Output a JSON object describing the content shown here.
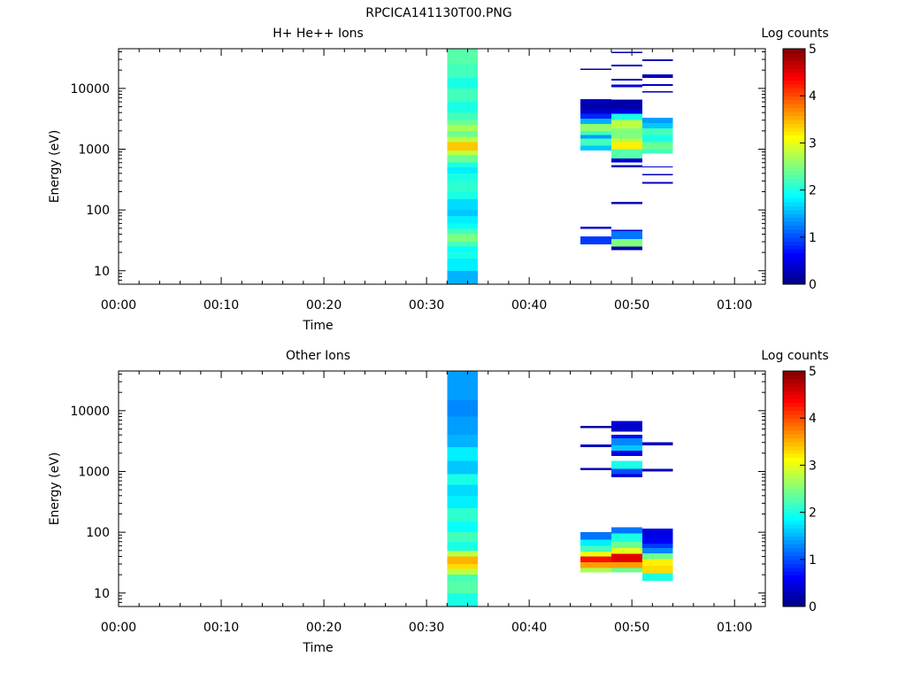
{
  "file_title": "RPCICA141130T00.PNG",
  "colors": {
    "colormap": [
      "#00007f",
      "#0000ff",
      "#007fff",
      "#00ffff",
      "#7fff7f",
      "#ffff00",
      "#ff7f00",
      "#ff0000",
      "#7f0000"
    ],
    "axis": "#000000",
    "background": "#ffffff"
  },
  "chart_data": [
    {
      "type": "heatmap",
      "title": "H+ He++ Ions",
      "xlabel": "Time",
      "ylabel": "Energy (eV)",
      "yscale": "log",
      "xlim": [
        "00:00",
        "01:03"
      ],
      "ylim": [
        6,
        45000
      ],
      "x_ticks": [
        "00:00",
        "00:10",
        "00:20",
        "00:30",
        "00:40",
        "00:50",
        "01:00"
      ],
      "y_ticks": [
        "10",
        "100",
        "1000",
        "10000"
      ],
      "colorbar": {
        "label": "Log counts",
        "range": [
          0,
          5
        ],
        "ticks": [
          "0",
          "1",
          "2",
          "3",
          "4",
          "5"
        ]
      },
      "columns": [
        {
          "start": "00:32",
          "end": "00:35",
          "cells": [
            [
              6,
              10,
              1.5
            ],
            [
              10,
              16,
              1.8
            ],
            [
              16,
              20,
              2.0
            ],
            [
              20,
              25,
              1.9
            ],
            [
              25,
              30,
              2.2
            ],
            [
              30,
              40,
              2.5
            ],
            [
              40,
              50,
              2.2
            ],
            [
              50,
              60,
              1.9
            ],
            [
              60,
              80,
              1.8
            ],
            [
              80,
              100,
              1.6
            ],
            [
              100,
              150,
              1.7
            ],
            [
              150,
              200,
              2.0
            ],
            [
              200,
              300,
              2.1
            ],
            [
              300,
              400,
              2.0
            ],
            [
              400,
              500,
              1.8
            ],
            [
              500,
              600,
              2.0
            ],
            [
              600,
              800,
              2.4
            ],
            [
              800,
              950,
              2.8
            ],
            [
              950,
              1300,
              3.4
            ],
            [
              1300,
              1600,
              2.8
            ],
            [
              1600,
              2000,
              2.4
            ],
            [
              2000,
              2500,
              2.7
            ],
            [
              2500,
              3000,
              2.4
            ],
            [
              3000,
              4000,
              2.2
            ],
            [
              4000,
              6000,
              2.0
            ],
            [
              6000,
              10000,
              2.2
            ],
            [
              10000,
              15000,
              2.0
            ],
            [
              15000,
              25000,
              2.2
            ],
            [
              25000,
              45000,
              2.3
            ]
          ]
        },
        {
          "start": "00:45",
          "end": "00:48",
          "cells": [
            [
              27,
              37,
              0.9
            ],
            [
              49,
              53,
              0.4
            ],
            [
              950,
              1150,
              1.6
            ],
            [
              1150,
              1500,
              2.2
            ],
            [
              1500,
              1700,
              1.4
            ],
            [
              1700,
              2000,
              2.2
            ],
            [
              2000,
              2600,
              2.6
            ],
            [
              2600,
              3200,
              1.5
            ],
            [
              3200,
              3800,
              0.8
            ],
            [
              3800,
              4500,
              0.4
            ],
            [
              4500,
              5500,
              0.2
            ],
            [
              5500,
              6700,
              0.3
            ],
            [
              20000,
              21000,
              0.2
            ]
          ]
        },
        {
          "start": "00:48",
          "end": "00:51",
          "cells": [
            [
              22,
              25,
              0.2
            ],
            [
              25,
              33,
              2.5
            ],
            [
              33,
              45,
              1.2
            ],
            [
              45,
              47,
              0.4
            ],
            [
              125,
              135,
              0.3
            ],
            [
              500,
              550,
              0.3
            ],
            [
              600,
              700,
              0.4
            ],
            [
              700,
              1000,
              2.3
            ],
            [
              1000,
              1300,
              3.2
            ],
            [
              1300,
              1500,
              2.8
            ],
            [
              1500,
              2200,
              2.5
            ],
            [
              2200,
              3000,
              2.8
            ],
            [
              3000,
              3800,
              2.0
            ],
            [
              3800,
              4500,
              0.5
            ],
            [
              4500,
              6500,
              0.2
            ],
            [
              10500,
              11500,
              0.4
            ],
            [
              13500,
              14500,
              0.3
            ],
            [
              23000,
              24500,
              0.3
            ],
            [
              38000,
              40000,
              0.2
            ]
          ]
        },
        {
          "start": "00:51",
          "end": "00:54",
          "cells": [
            [
              270,
              290,
              0.3
            ],
            [
              370,
              390,
              0.3
            ],
            [
              500,
              520,
              0.4
            ],
            [
              850,
              1000,
              2.2
            ],
            [
              1000,
              1300,
              2.4
            ],
            [
              1300,
              1700,
              2.0
            ],
            [
              1700,
              2200,
              2.2
            ],
            [
              2200,
              2700,
              1.6
            ],
            [
              2700,
              3300,
              1.4
            ],
            [
              8500,
              9000,
              0.3
            ],
            [
              11000,
              11800,
              0.3
            ],
            [
              15000,
              17000,
              0.3
            ],
            [
              28000,
              30000,
              0.3
            ]
          ]
        }
      ]
    },
    {
      "type": "heatmap",
      "title": "Other Ions",
      "xlabel": "Time",
      "ylabel": "Energy (eV)",
      "yscale": "log",
      "xlim": [
        "00:00",
        "01:03"
      ],
      "ylim": [
        6,
        45000
      ],
      "x_ticks": [
        "00:00",
        "00:10",
        "00:20",
        "00:30",
        "00:40",
        "00:50",
        "01:00"
      ],
      "y_ticks": [
        "10",
        "100",
        "1000",
        "10000"
      ],
      "colorbar": {
        "label": "Log counts",
        "range": [
          0,
          5
        ],
        "ticks": [
          "0",
          "1",
          "2",
          "3",
          "4",
          "5"
        ]
      },
      "columns": [
        {
          "start": "00:32",
          "end": "00:35",
          "cells": [
            [
              6,
              10,
              2.0
            ],
            [
              10,
              16,
              2.3
            ],
            [
              16,
              20,
              2.2
            ],
            [
              20,
              25,
              2.8
            ],
            [
              25,
              30,
              3.3
            ],
            [
              30,
              40,
              3.5
            ],
            [
              40,
              50,
              2.8
            ],
            [
              50,
              70,
              2.0
            ],
            [
              70,
              100,
              2.2
            ],
            [
              100,
              150,
              1.9
            ],
            [
              150,
              250,
              2.1
            ],
            [
              250,
              400,
              1.8
            ],
            [
              400,
              600,
              1.7
            ],
            [
              600,
              900,
              2.0
            ],
            [
              900,
              1500,
              1.6
            ],
            [
              1500,
              2500,
              1.8
            ],
            [
              2500,
              4000,
              1.5
            ],
            [
              4000,
              8000,
              1.4
            ],
            [
              8000,
              15000,
              1.3
            ],
            [
              15000,
              45000,
              1.4
            ]
          ]
        },
        {
          "start": "00:45",
          "end": "00:48",
          "cells": [
            [
              22,
              26,
              2.7
            ],
            [
              26,
              32,
              3.6
            ],
            [
              32,
              40,
              4.3
            ],
            [
              40,
              48,
              3.0
            ],
            [
              48,
              60,
              2.2
            ],
            [
              60,
              75,
              1.8
            ],
            [
              75,
              100,
              1.2
            ],
            [
              1050,
              1150,
              0.3
            ],
            [
              2500,
              2800,
              0.3
            ],
            [
              5200,
              5600,
              0.2
            ]
          ]
        },
        {
          "start": "00:48",
          "end": "00:51",
          "cells": [
            [
              22,
              26,
              2.4
            ],
            [
              26,
              32,
              3.6
            ],
            [
              32,
              44,
              4.5
            ],
            [
              44,
              55,
              3.0
            ],
            [
              55,
              70,
              2.4
            ],
            [
              70,
              95,
              2.0
            ],
            [
              95,
              120,
              1.2
            ],
            [
              800,
              900,
              0.4
            ],
            [
              900,
              1100,
              1.0
            ],
            [
              1100,
              1500,
              2.0
            ],
            [
              1800,
              2200,
              0.5
            ],
            [
              2200,
              2700,
              1.6
            ],
            [
              2700,
              3500,
              1.3
            ],
            [
              3500,
              4000,
              0.6
            ],
            [
              4500,
              5000,
              0.3
            ],
            [
              5000,
              6800,
              0.4
            ]
          ]
        },
        {
          "start": "00:51",
          "end": "00:54",
          "cells": [
            [
              16,
              21,
              2.0
            ],
            [
              21,
              28,
              3.3
            ],
            [
              28,
              36,
              3.2
            ],
            [
              36,
              45,
              2.4
            ],
            [
              45,
              55,
              1.3
            ],
            [
              55,
              65,
              0.9
            ],
            [
              65,
              80,
              0.6
            ],
            [
              80,
              115,
              0.5
            ],
            [
              1000,
              1100,
              0.3
            ],
            [
              2700,
              3000,
              0.3
            ]
          ]
        }
      ]
    }
  ]
}
